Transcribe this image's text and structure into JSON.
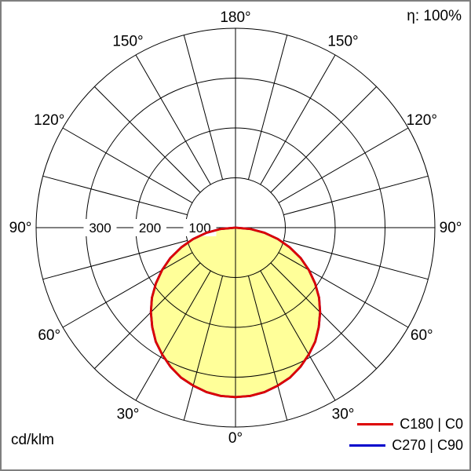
{
  "header": {
    "efficiency_label": "η: 100%"
  },
  "footer": {
    "unit_label": "cd/klm"
  },
  "legend": {
    "entries": [
      {
        "label": "C180 | C0",
        "color": "#dd0000"
      },
      {
        "label": "C270 | C90",
        "color": "#0000cc"
      }
    ]
  },
  "chart_data": {
    "type": "polar_line",
    "unit": "cd/klm",
    "efficiency": "η: 100%",
    "angle_tick_step_deg": 15,
    "angle_label_step_deg": 30,
    "angle_labels": [
      "0°",
      "30°",
      "60°",
      "90°",
      "120°",
      "150°",
      "180°"
    ],
    "radial_ticks": [
      100,
      200,
      300
    ],
    "radial_tick_labels": [
      "100",
      "200",
      "300"
    ],
    "radial_max": 400,
    "gamma_deg": [
      0,
      5,
      10,
      15,
      20,
      25,
      30,
      35,
      40,
      45,
      50,
      55,
      60,
      65,
      70,
      75,
      80,
      85,
      90
    ],
    "series": [
      {
        "name": "C180 | C0",
        "color": "#dd0000",
        "fill": "#ffff99",
        "values": [
          340,
          339,
          335,
          328,
          320,
          308,
          294,
          279,
          260,
          240,
          219,
          195,
          170,
          144,
          116,
          88,
          59,
          30,
          0
        ]
      },
      {
        "name": "C270 | C90",
        "color": "#0000cc",
        "fill": "#ffff99",
        "values": [
          340,
          339,
          335,
          328,
          320,
          308,
          294,
          279,
          260,
          240,
          219,
          195,
          170,
          144,
          116,
          88,
          59,
          30,
          0
        ]
      }
    ],
    "legend_position": "bottom-right",
    "grid": true
  }
}
